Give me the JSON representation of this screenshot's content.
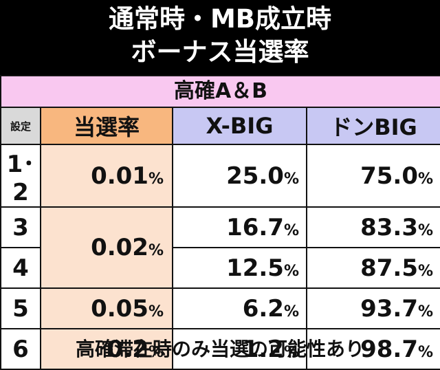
{
  "title": {
    "line1": "通常時・MB成立時",
    "line2": "ボーナス当選率"
  },
  "subheader": "高確A＆B",
  "columns": {
    "setting": "設定",
    "rate": "当選率",
    "xbig": "X-BIG",
    "donbig": "ドンBIG"
  },
  "unit": "%",
  "rows": [
    {
      "setting": "1･2",
      "rate": "0.01",
      "xbig": "25.0",
      "donbig": "75.0"
    },
    {
      "setting": "3",
      "rate": "0.02",
      "xbig": "16.7",
      "donbig": "83.3"
    },
    {
      "setting": "4",
      "xbig": "12.5",
      "donbig": "87.5"
    },
    {
      "setting": "5",
      "rate": "0.05",
      "xbig": "6.2",
      "donbig": "93.7"
    },
    {
      "setting": "6",
      "rate": "0.2",
      "xbig": "1.2",
      "donbig": "98.7"
    }
  ],
  "footer": "高確滞在時のみ当選の可能性あり",
  "colors": {
    "header_bg": "#000000",
    "subheader_bg": "#f9c8f0",
    "rate_header_bg": "#f8b77f",
    "rate_cell_bg": "#fce2cf",
    "bonus_header_bg": "#c8c8f3",
    "setting_header_bg": "#d9d9d9"
  }
}
